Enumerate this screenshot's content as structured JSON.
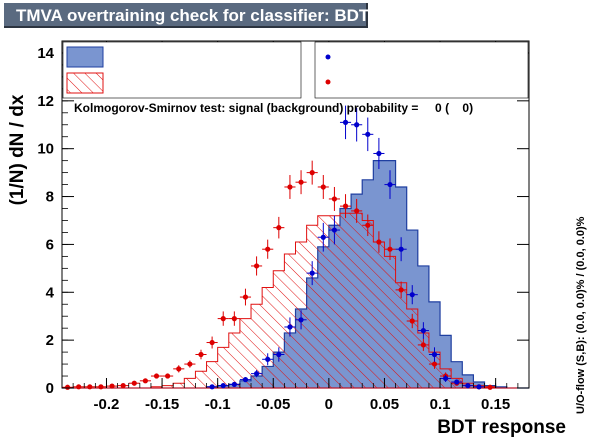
{
  "title": "TMVA overtraining check for classifier: BDT",
  "ks_test": {
    "label": "Kolmogorov-Smirnov test: signal (background) probability =",
    "signal_prob": "0",
    "background_prob": "0"
  },
  "overflow_note": "U/O-flow (S,B): (0.0, 0.0)% / (0.0, 0.0)%",
  "colors": {
    "signal_fill": "#7a95d0",
    "signal_line": "#1f3fa0",
    "background_line": "#e01010",
    "signal_points": "#0000cc",
    "background_points": "#dd0000",
    "title_bg": "#5a6a80"
  },
  "chart_data": {
    "type": "histogram",
    "xlabel": "BDT response",
    "ylabel": "(1/N) dN / dx",
    "xlim": [
      -0.24,
      0.18
    ],
    "ylim": [
      0,
      14.5
    ],
    "x_ticks": [
      -0.2,
      -0.15,
      -0.1,
      -0.05,
      0,
      0.05,
      0.1,
      0.15
    ],
    "x_tick_labels": [
      "-0.2",
      "-0.15",
      "-0.1",
      "-0.05",
      "0",
      "0.05",
      "0.1",
      "0.15"
    ],
    "y_ticks": [
      0,
      2,
      4,
      6,
      8,
      10,
      12,
      14
    ],
    "y_tick_labels": [
      "0",
      "2",
      "4",
      "6",
      "8",
      "10",
      "12",
      "14"
    ],
    "bin_edges": [
      -0.24,
      -0.23,
      -0.22,
      -0.21,
      -0.2,
      -0.19,
      -0.18,
      -0.17,
      -0.16,
      -0.15,
      -0.14,
      -0.13,
      -0.12,
      -0.11,
      -0.1,
      -0.09,
      -0.08,
      -0.07,
      -0.06,
      -0.05,
      -0.04,
      -0.03,
      -0.02,
      -0.01,
      0.0,
      0.01,
      0.02,
      0.03,
      0.04,
      0.05,
      0.06,
      0.07,
      0.08,
      0.09,
      0.1,
      0.11,
      0.12,
      0.13,
      0.14,
      0.15,
      0.16,
      0.17,
      0.18
    ],
    "series": [
      {
        "kind": "filled",
        "values": [
          0,
          0,
          0,
          0,
          0,
          0,
          0,
          0,
          0,
          0,
          0,
          0,
          0,
          0.05,
          0.1,
          0.15,
          0.3,
          0.5,
          0.9,
          1.5,
          2.3,
          3.3,
          4.6,
          5.9,
          6.8,
          7.5,
          8.1,
          8.7,
          9.5,
          9.5,
          8.4,
          6.6,
          5.1,
          3.6,
          2.2,
          1.1,
          0.55,
          0.25,
          0.1,
          0.05,
          0,
          0
        ]
      },
      {
        "kind": "hatched",
        "values": [
          0,
          0,
          0,
          0,
          0,
          0,
          0,
          0,
          0.05,
          0.1,
          0.2,
          0.4,
          0.7,
          1.1,
          1.7,
          2.3,
          2.9,
          3.5,
          4.2,
          4.9,
          5.6,
          6.1,
          6.8,
          7.2,
          7.2,
          7.3,
          7.3,
          7.0,
          6.1,
          5.5,
          4.4,
          3.3,
          2.3,
          1.5,
          0.8,
          0.4,
          0.2,
          0.1,
          0.05,
          0,
          0,
          0
        ]
      },
      {
        "kind": "points",
        "values": [
          0,
          0,
          0,
          0,
          0,
          0,
          0,
          0,
          0,
          0,
          0,
          0,
          0,
          0.05,
          0.1,
          0.15,
          0.35,
          0.6,
          1.2,
          1.4,
          2.55,
          2.85,
          4.8,
          6.3,
          6.6,
          11.1,
          11.0,
          10.6,
          9.8,
          8.5,
          5.8,
          3.9,
          2.4,
          1.4,
          0.4,
          0.25,
          0.1,
          0.05,
          0,
          0,
          0,
          0
        ],
        "errors": [
          0,
          0,
          0,
          0,
          0,
          0,
          0,
          0,
          0,
          0,
          0,
          0,
          0,
          0.05,
          0.05,
          0.05,
          0.1,
          0.15,
          0.25,
          0.3,
          0.4,
          0.4,
          0.5,
          0.6,
          0.6,
          0.7,
          0.7,
          0.7,
          0.65,
          0.6,
          0.5,
          0.4,
          0.35,
          0.3,
          0.15,
          0.1,
          0.08,
          0.05,
          0,
          0,
          0,
          0
        ]
      },
      {
        "kind": "points",
        "values": [
          0.03,
          0.05,
          0.05,
          0.05,
          0.08,
          0.1,
          0.2,
          0.3,
          0.5,
          0.5,
          0.8,
          1.0,
          1.4,
          1.9,
          2.9,
          2.9,
          3.8,
          5.1,
          5.8,
          6.7,
          8.4,
          8.6,
          9.0,
          8.4,
          7.9,
          7.6,
          7.4,
          6.8,
          6.1,
          5.8,
          4.1,
          2.8,
          1.8,
          1.0,
          0.5,
          0.2,
          0.1,
          0.05,
          0.03,
          0,
          0,
          0
        ],
        "errors": [
          0.02,
          0.02,
          0.02,
          0.02,
          0.03,
          0.04,
          0.05,
          0.08,
          0.1,
          0.1,
          0.15,
          0.15,
          0.2,
          0.25,
          0.3,
          0.3,
          0.35,
          0.4,
          0.4,
          0.45,
          0.5,
          0.5,
          0.5,
          0.5,
          0.5,
          0.5,
          0.5,
          0.45,
          0.45,
          0.45,
          0.35,
          0.3,
          0.25,
          0.2,
          0.15,
          0.1,
          0.05,
          0.04,
          0.03,
          0,
          0,
          0
        ]
      }
    ]
  }
}
